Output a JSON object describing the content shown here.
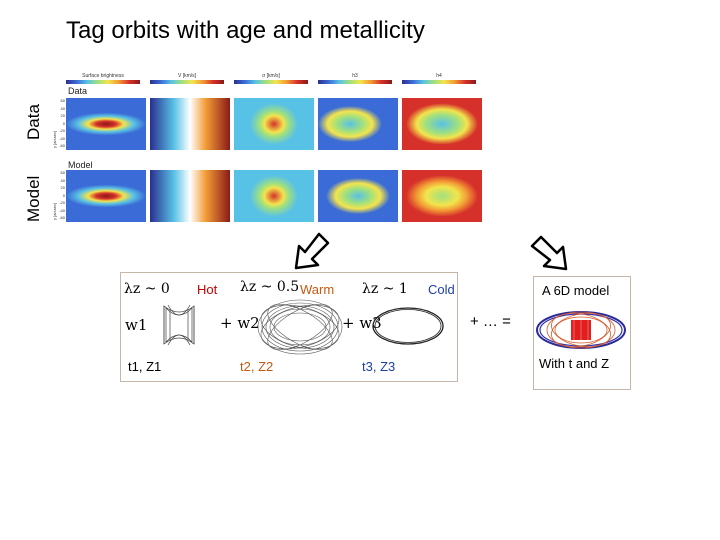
{
  "title": "Tag orbits with age and metallicity",
  "side_labels": {
    "data": "Data",
    "model": "Model"
  },
  "panel": {
    "colorbars": [
      "Surface brightness",
      "V [km/s]",
      "σ [km/s]",
      "h3",
      "h4"
    ],
    "row_labels": {
      "data": "Data",
      "model": "Model"
    },
    "yaxis": "y [arcsec]",
    "ytick_values": [
      "60",
      "40",
      "20",
      "0",
      "-20",
      "-40",
      "-60"
    ]
  },
  "components": {
    "lambda_labels": [
      "λz ~ 0",
      "λz ~ 0.5",
      "λz ~ 1"
    ],
    "temps": [
      {
        "label": "Hot",
        "color": "#c00000"
      },
      {
        "label": "Warm",
        "color": "#c55a11"
      },
      {
        "label": "Cold",
        "color": "#1f3fa6"
      }
    ],
    "weights": {
      "w1": "w1",
      "w2": "+ w2",
      "w3": "+ w3",
      "more": "+ … ="
    },
    "tags": [
      "t1, Z1",
      "t2, Z2",
      "t3, Z3"
    ]
  },
  "result": {
    "title": "A 6D model",
    "caption": "With t and Z"
  },
  "colors": {
    "box_border": "#c6b7a8",
    "arrow": "#000000"
  }
}
